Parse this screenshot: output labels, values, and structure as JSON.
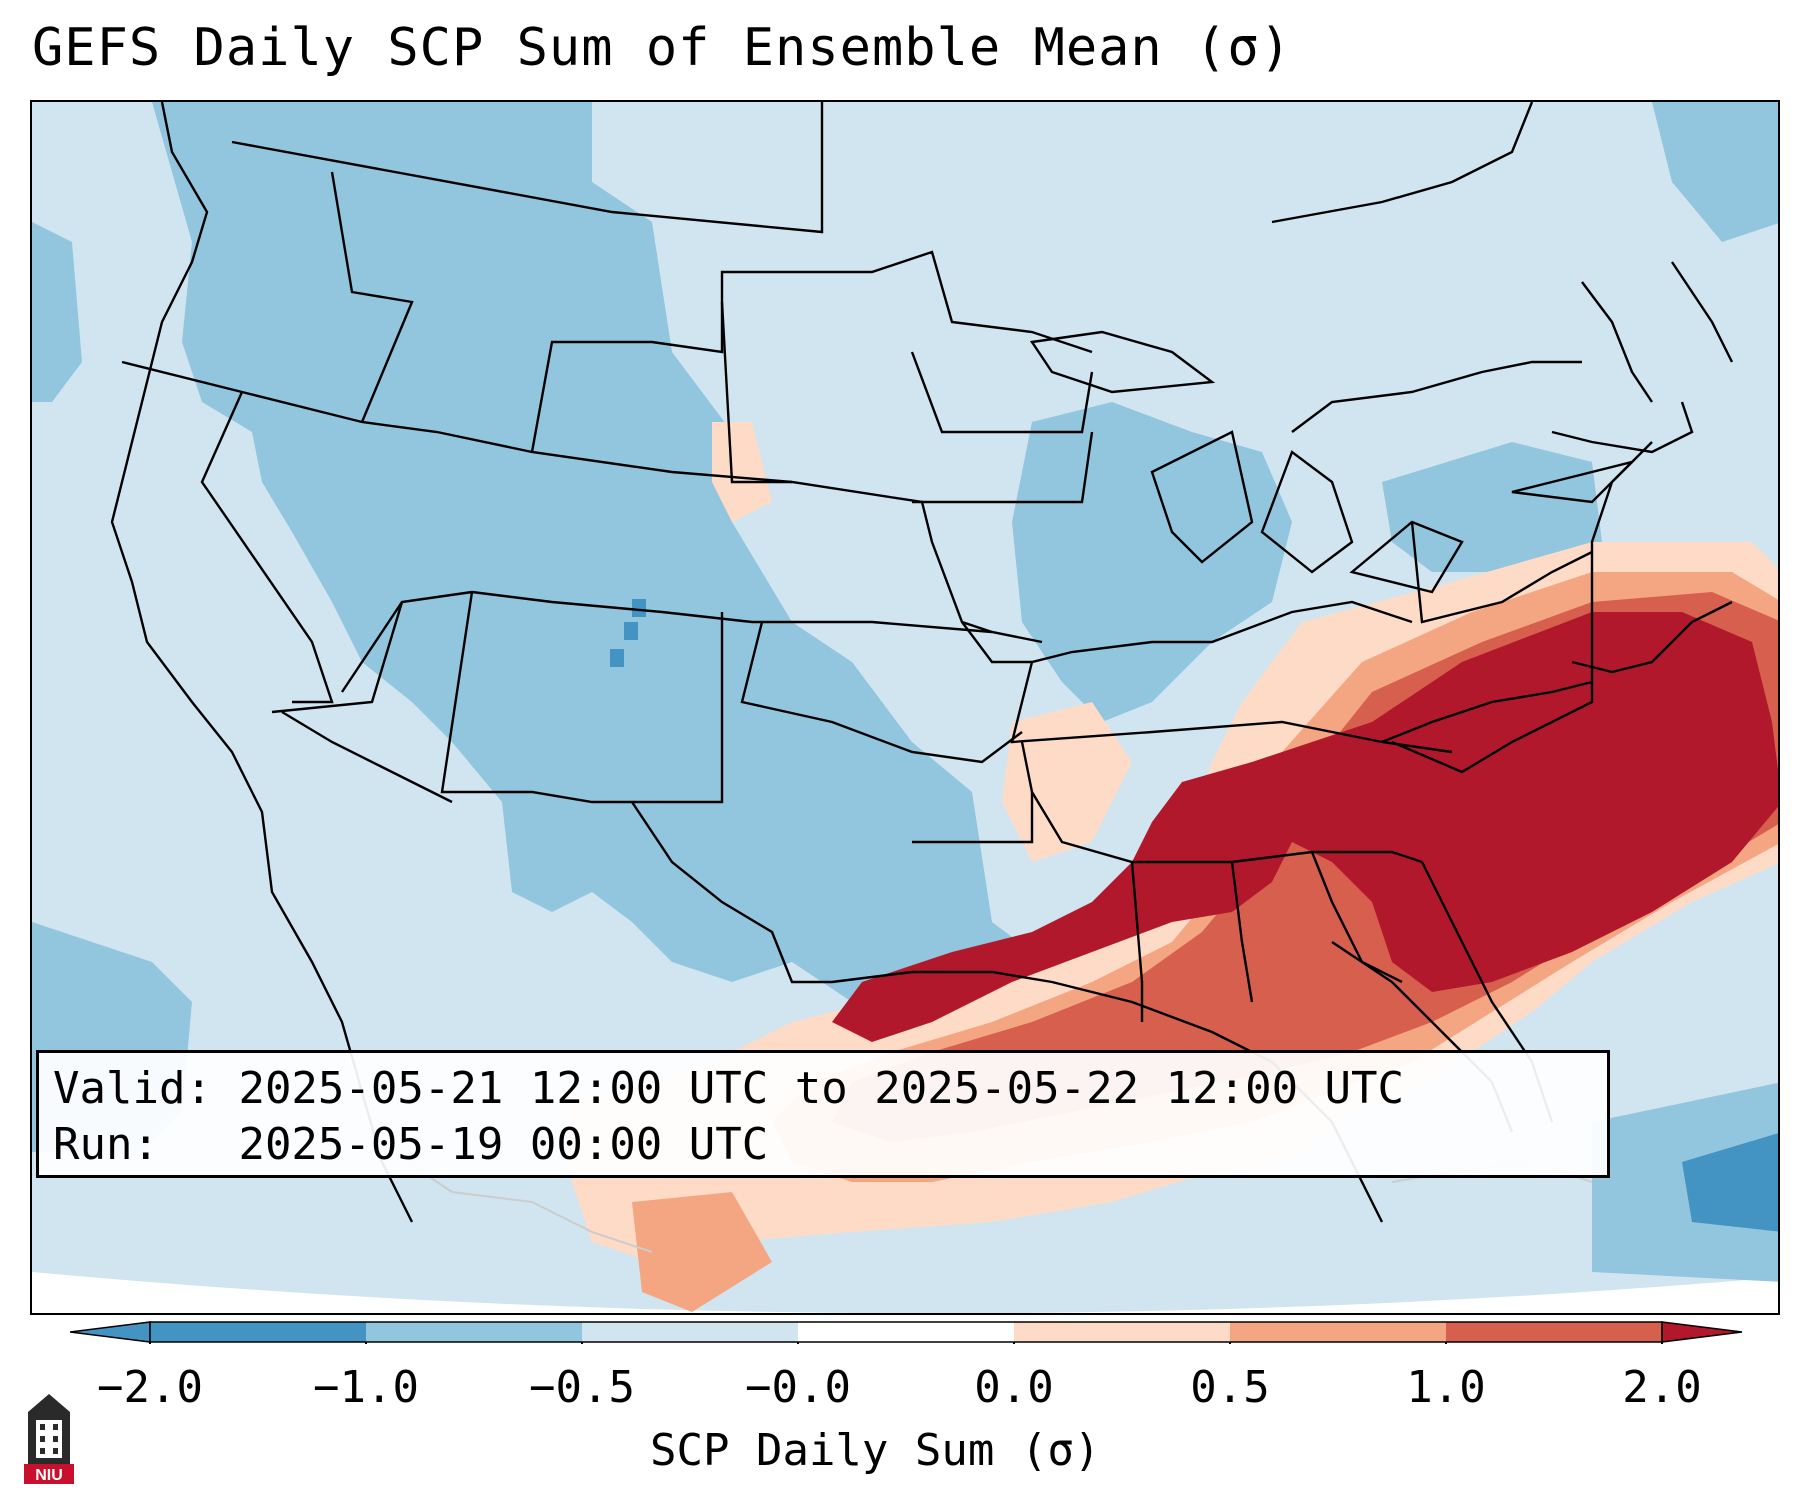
{
  "title": "GEFS Daily SCP Sum of Ensemble Mean (σ)",
  "info": {
    "valid_label": "Valid:",
    "valid_value": "2025-05-21 12:00 UTC to 2025-05-22 12:00 UTC",
    "run_label": "Run:",
    "run_value": "2025-05-19 00:00 UTC"
  },
  "colorbar": {
    "label": "SCP Daily Sum (σ)",
    "ticks": [
      "−2.0",
      "−1.0",
      "−0.5",
      "−0.0",
      "0.0",
      "0.5",
      "1.0",
      "2.0"
    ],
    "colors": [
      "#4393c3",
      "#92c5de",
      "#d1e5f0",
      "#fddbc7",
      "#f4a582",
      "#d6604d",
      "#b2182b"
    ]
  },
  "logo": {
    "text": "NIU"
  }
}
